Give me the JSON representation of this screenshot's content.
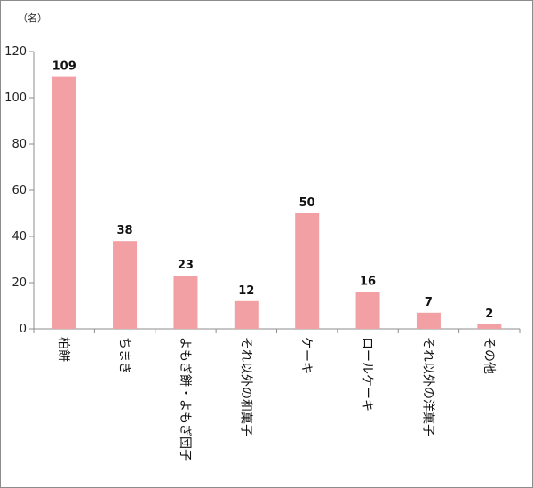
{
  "chart_data": {
    "type": "bar",
    "unit_label": "（名）",
    "categories": [
      "柏餅",
      "ちまき",
      "よもぎ餅・よもぎ団子",
      "それ以外の和菓子",
      "ケーキ",
      "ロールケーキ",
      "それ以外の洋菓子",
      "その他"
    ],
    "values": [
      109,
      38,
      23,
      12,
      50,
      16,
      7,
      2
    ],
    "ylim": [
      0,
      120
    ],
    "yticks": [
      0,
      20,
      40,
      60,
      80,
      100,
      120
    ],
    "grid": false,
    "legend": "none",
    "colors": {
      "bar": "#f2a0a4",
      "axis": "#8c8c8c",
      "frame": "#8c8c8c"
    }
  }
}
